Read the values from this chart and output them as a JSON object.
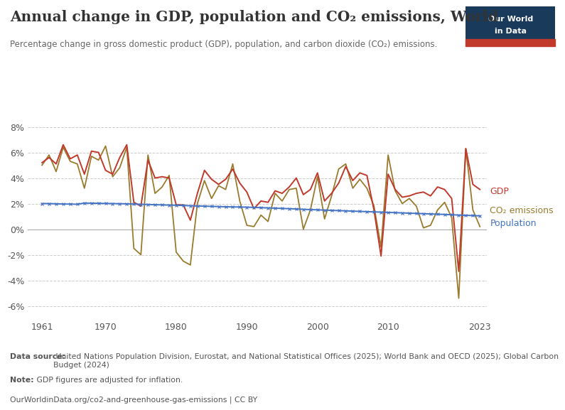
{
  "title": "Annual change in GDP, population and CO₂ emissions, World",
  "subtitle": "Percentage change in gross domestic product (GDP), population, and carbon dioxide (CO₂) emissions.",
  "datasource_bold": "Data source:",
  "datasource_rest": " United Nations Population Division, Eurostat, and National Statistical Offices (2025); World Bank and OECD (2025); Global Carbon Budget (2024)",
  "note_bold": "Note:",
  "note_rest": " GDP figures are adjusted for inflation.",
  "url": "OurWorldinData.org/co2-and-greenhouse-gas-emissions | CC BY",
  "years": [
    1961,
    1962,
    1963,
    1964,
    1965,
    1966,
    1967,
    1968,
    1969,
    1970,
    1971,
    1972,
    1973,
    1974,
    1975,
    1976,
    1977,
    1978,
    1979,
    1980,
    1981,
    1982,
    1983,
    1984,
    1985,
    1986,
    1987,
    1988,
    1989,
    1990,
    1991,
    1992,
    1993,
    1994,
    1995,
    1996,
    1997,
    1998,
    1999,
    2000,
    2001,
    2002,
    2003,
    2004,
    2005,
    2006,
    2007,
    2008,
    2009,
    2010,
    2011,
    2012,
    2013,
    2014,
    2015,
    2016,
    2017,
    2018,
    2019,
    2020,
    2021,
    2022,
    2023
  ],
  "gdp": [
    5.2,
    5.6,
    5.1,
    6.6,
    5.5,
    5.8,
    4.3,
    6.1,
    6.0,
    4.6,
    4.3,
    5.6,
    6.6,
    2.1,
    1.8,
    5.4,
    4.0,
    4.1,
    4.0,
    1.9,
    1.9,
    0.7,
    2.8,
    4.6,
    3.9,
    3.5,
    3.9,
    4.7,
    3.6,
    2.9,
    1.6,
    2.2,
    2.1,
    3.0,
    2.8,
    3.3,
    4.0,
    2.7,
    3.1,
    4.4,
    2.2,
    2.8,
    3.6,
    4.9,
    3.8,
    4.4,
    4.2,
    1.5,
    -2.1,
    4.3,
    3.1,
    2.5,
    2.6,
    2.8,
    2.9,
    2.6,
    3.3,
    3.1,
    2.4,
    -3.3,
    6.3,
    3.5,
    3.1
  ],
  "population": [
    2.0,
    2.0,
    1.98,
    1.97,
    1.96,
    1.95,
    2.04,
    2.03,
    2.02,
    2.01,
    2.0,
    1.99,
    1.98,
    1.96,
    1.94,
    1.93,
    1.91,
    1.9,
    1.88,
    1.87,
    1.85,
    1.83,
    1.81,
    1.8,
    1.78,
    1.77,
    1.75,
    1.74,
    1.73,
    1.72,
    1.7,
    1.68,
    1.66,
    1.64,
    1.62,
    1.6,
    1.58,
    1.55,
    1.53,
    1.51,
    1.49,
    1.47,
    1.45,
    1.43,
    1.41,
    1.39,
    1.37,
    1.35,
    1.33,
    1.31,
    1.29,
    1.27,
    1.25,
    1.23,
    1.21,
    1.19,
    1.17,
    1.15,
    1.13,
    1.1,
    1.08,
    1.06,
    1.04
  ],
  "co2": [
    5.0,
    5.8,
    4.5,
    6.4,
    5.3,
    5.1,
    3.2,
    5.7,
    5.4,
    6.5,
    4.1,
    4.8,
    6.4,
    -1.5,
    -2.0,
    5.8,
    2.8,
    3.3,
    4.2,
    -1.8,
    -2.5,
    -2.8,
    2.0,
    3.8,
    2.4,
    3.4,
    3.1,
    5.1,
    2.2,
    0.3,
    0.2,
    1.1,
    0.6,
    2.8,
    2.2,
    3.1,
    3.2,
    0.0,
    1.5,
    4.1,
    0.8,
    2.6,
    4.7,
    5.1,
    3.2,
    3.9,
    3.2,
    1.8,
    -1.4,
    5.8,
    3.0,
    2.0,
    2.4,
    1.8,
    0.1,
    0.3,
    1.5,
    2.1,
    0.9,
    -5.4,
    6.3,
    1.5,
    0.2
  ],
  "gdp_color": "#c0392b",
  "population_color": "#4472c4",
  "co2_color": "#9a7b2e",
  "background_color": "#ffffff",
  "grid_color": "#cccccc",
  "ylim": [
    -7,
    9.5
  ],
  "yticks": [
    -6,
    -4,
    -2,
    0,
    2,
    4,
    6,
    8
  ],
  "xticks": [
    1961,
    1970,
    1980,
    1990,
    2000,
    2010,
    2023
  ],
  "owid_box_color": "#1a3a5c",
  "owid_red": "#c0392b",
  "text_color": "#333333",
  "footer_color": "#555555"
}
